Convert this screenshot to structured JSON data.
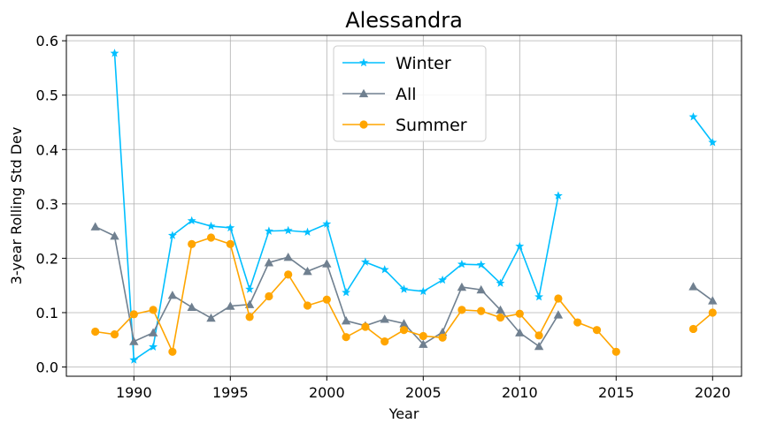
{
  "chart_data": {
    "type": "line",
    "title": "Alessandra",
    "xlabel": "Year",
    "ylabel": "3-year Rolling Std Dev",
    "xlim": [
      1986.5,
      2021.5
    ],
    "ylim": [
      -0.017,
      0.61
    ],
    "xticks": [
      1990,
      1995,
      2000,
      2005,
      2010,
      2015,
      2020
    ],
    "yticks": [
      0.0,
      0.1,
      0.2,
      0.3,
      0.4,
      0.5,
      0.6
    ],
    "ytick_labels": [
      "0.0",
      "0.1",
      "0.2",
      "0.3",
      "0.4",
      "0.5",
      "0.6"
    ],
    "grid": true,
    "legend_position": "top-center",
    "series": [
      {
        "name": "Winter",
        "color": "#00bfff",
        "marker": "star",
        "points": [
          [
            1989,
            0.577
          ],
          [
            1990,
            0.013
          ],
          [
            1991,
            0.037
          ],
          [
            1992,
            0.242
          ],
          [
            1993,
            0.269
          ],
          [
            1994,
            0.259
          ],
          [
            1995,
            0.256
          ],
          [
            1996,
            0.143
          ],
          [
            1997,
            0.25
          ],
          [
            1998,
            0.251
          ],
          [
            1999,
            0.248
          ],
          [
            2000,
            0.263
          ],
          [
            2001,
            0.137
          ],
          [
            2002,
            0.193
          ],
          [
            2003,
            0.179
          ],
          [
            2004,
            0.143
          ],
          [
            2005,
            0.139
          ],
          [
            2006,
            0.16
          ],
          [
            2007,
            0.189
          ],
          [
            2008,
            0.188
          ],
          [
            2009,
            0.154
          ],
          [
            2010,
            0.222
          ],
          [
            2011,
            0.129
          ],
          [
            2012,
            0.315
          ],
          null,
          [
            2019,
            0.46
          ],
          [
            2020,
            0.413
          ]
        ]
      },
      {
        "name": "All",
        "color": "#708090",
        "marker": "triangle",
        "points": [
          [
            1988,
            0.258
          ],
          [
            1989,
            0.241
          ],
          [
            1990,
            0.047
          ],
          [
            1991,
            0.063
          ],
          [
            1992,
            0.132
          ],
          [
            1993,
            0.11
          ],
          [
            1994,
            0.09
          ],
          [
            1995,
            0.112
          ],
          [
            1996,
            0.115
          ],
          [
            1997,
            0.192
          ],
          [
            1998,
            0.202
          ],
          [
            1999,
            0.176
          ],
          [
            2000,
            0.19
          ],
          [
            2001,
            0.085
          ],
          [
            2002,
            0.076
          ],
          [
            2003,
            0.088
          ],
          [
            2004,
            0.08
          ],
          [
            2005,
            0.042
          ],
          [
            2006,
            0.064
          ],
          [
            2007,
            0.147
          ],
          [
            2008,
            0.142
          ],
          [
            2009,
            0.105
          ],
          [
            2010,
            0.063
          ],
          [
            2011,
            0.038
          ],
          [
            2012,
            0.096
          ],
          null,
          [
            2019,
            0.148
          ],
          [
            2020,
            0.122
          ]
        ]
      },
      {
        "name": "Summer",
        "color": "#ffa500",
        "marker": "circle",
        "points": [
          [
            1988,
            0.065
          ],
          [
            1989,
            0.06
          ],
          [
            1990,
            0.097
          ],
          [
            1991,
            0.105
          ],
          [
            1992,
            0.028
          ],
          [
            1993,
            0.226
          ],
          [
            1994,
            0.238
          ],
          [
            1995,
            0.226
          ],
          [
            1996,
            0.092
          ],
          [
            1997,
            0.13
          ],
          [
            1998,
            0.17
          ],
          [
            1999,
            0.113
          ],
          [
            2000,
            0.124
          ],
          [
            2001,
            0.055
          ],
          [
            2002,
            0.074
          ],
          [
            2003,
            0.047
          ],
          [
            2004,
            0.068
          ],
          [
            2005,
            0.057
          ],
          [
            2006,
            0.054
          ],
          [
            2007,
            0.105
          ],
          [
            2008,
            0.103
          ],
          [
            2009,
            0.091
          ],
          [
            2010,
            0.098
          ],
          [
            2011,
            0.058
          ],
          [
            2012,
            0.126
          ],
          [
            2013,
            0.082
          ],
          [
            2014,
            0.068
          ],
          [
            2015,
            0.028
          ],
          null,
          [
            2019,
            0.07
          ],
          [
            2020,
            0.1
          ]
        ]
      }
    ]
  }
}
